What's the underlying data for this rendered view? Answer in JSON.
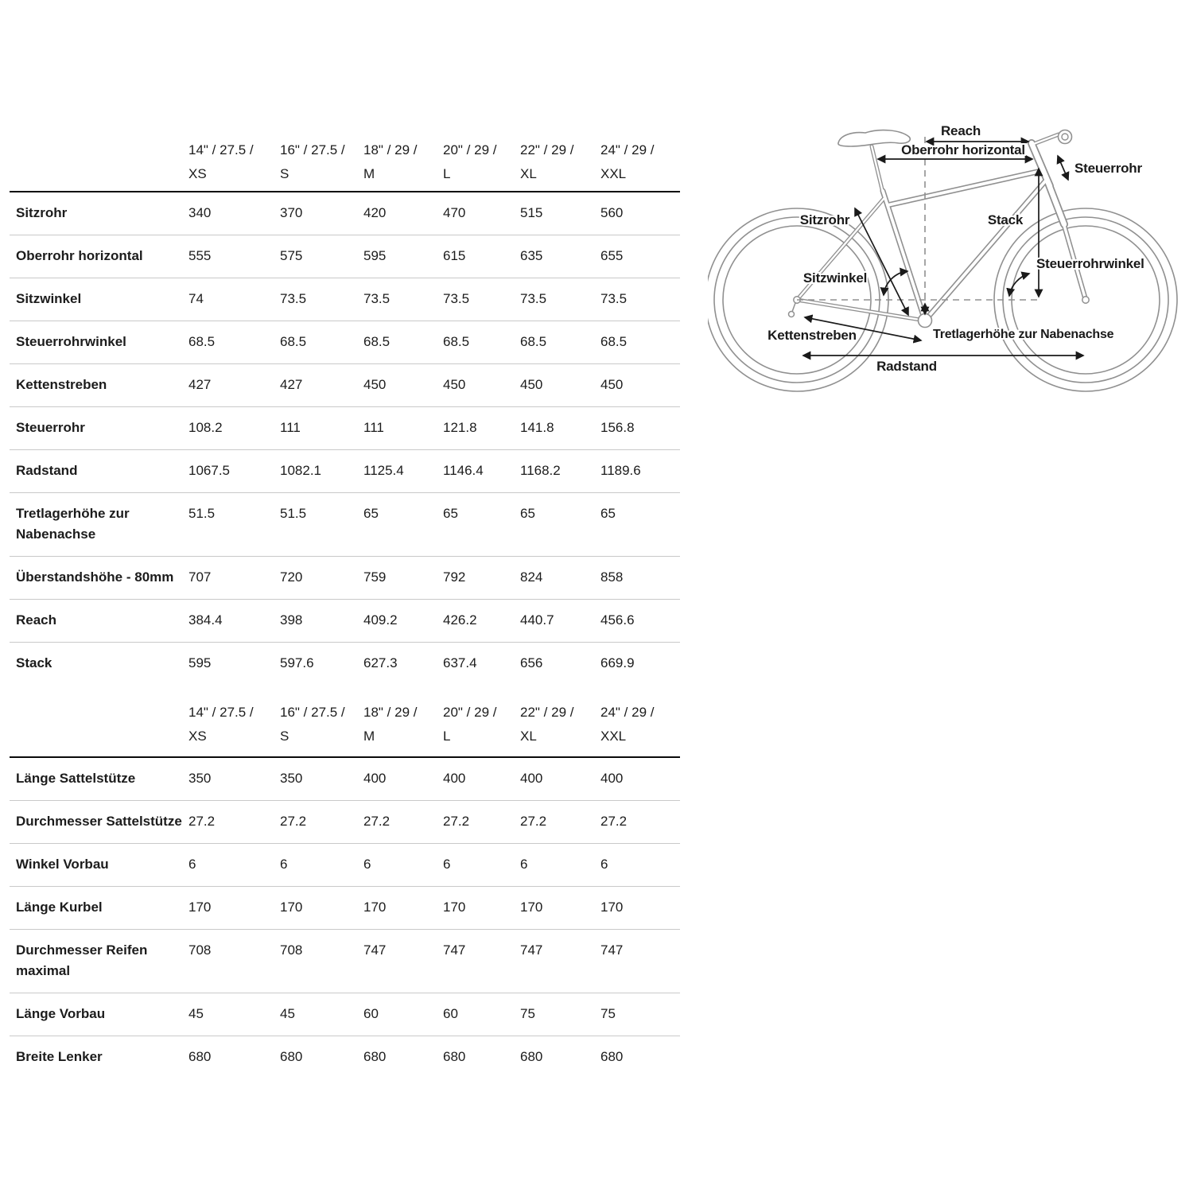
{
  "table": {
    "sizes": [
      {
        "l1": "14\" / 27.5 /",
        "l2": "XS"
      },
      {
        "l1": "16\" / 27.5 /",
        "l2": "S"
      },
      {
        "l1": "18\" / 29 /",
        "l2": "M"
      },
      {
        "l1": "20\" / 29 /",
        "l2": "L"
      },
      {
        "l1": "22\" / 29 /",
        "l2": "XL"
      },
      {
        "l1": "24\" / 29 /",
        "l2": "XXL"
      }
    ],
    "sections": [
      {
        "rows": [
          {
            "label": "Sitzrohr",
            "values": [
              "340",
              "370",
              "420",
              "470",
              "515",
              "560"
            ]
          },
          {
            "label": "Oberrohr horizontal",
            "values": [
              "555",
              "575",
              "595",
              "615",
              "635",
              "655"
            ]
          },
          {
            "label": "Sitzwinkel",
            "values": [
              "74",
              "73.5",
              "73.5",
              "73.5",
              "73.5",
              "73.5"
            ]
          },
          {
            "label": "Steuerrohrwinkel",
            "values": [
              "68.5",
              "68.5",
              "68.5",
              "68.5",
              "68.5",
              "68.5"
            ]
          },
          {
            "label": "Kettenstreben",
            "values": [
              "427",
              "427",
              "450",
              "450",
              "450",
              "450"
            ]
          },
          {
            "label": "Steuerrohr",
            "values": [
              "108.2",
              "111",
              "111",
              "121.8",
              "141.8",
              "156.8"
            ]
          },
          {
            "label": "Radstand",
            "values": [
              "1067.5",
              "1082.1",
              "1125.4",
              "1146.4",
              "1168.2",
              "1189.6"
            ]
          },
          {
            "label": "Tretlagerhöhe zur Nabenachse",
            "values": [
              "51.5",
              "51.5",
              "65",
              "65",
              "65",
              "65"
            ]
          },
          {
            "label": "Überstandshöhe - 80mm",
            "values": [
              "707",
              "720",
              "759",
              "792",
              "824",
              "858"
            ]
          },
          {
            "label": "Reach",
            "values": [
              "384.4",
              "398",
              "409.2",
              "426.2",
              "440.7",
              "456.6"
            ]
          },
          {
            "label": "Stack",
            "values": [
              "595",
              "597.6",
              "627.3",
              "637.4",
              "656",
              "669.9"
            ]
          }
        ]
      },
      {
        "rows": [
          {
            "label": "Länge Sattelstütze",
            "values": [
              "350",
              "350",
              "400",
              "400",
              "400",
              "400"
            ]
          },
          {
            "label": "Durchmesser Sattelstütze",
            "values": [
              "27.2",
              "27.2",
              "27.2",
              "27.2",
              "27.2",
              "27.2"
            ]
          },
          {
            "label": "Winkel Vorbau",
            "values": [
              "6",
              "6",
              "6",
              "6",
              "6",
              "6"
            ]
          },
          {
            "label": "Länge Kurbel",
            "values": [
              "170",
              "170",
              "170",
              "170",
              "170",
              "170"
            ]
          },
          {
            "label": "Durchmesser Reifen maximal",
            "values": [
              "708",
              "708",
              "747",
              "747",
              "747",
              "747"
            ]
          },
          {
            "label": "Länge Vorbau",
            "values": [
              "45",
              "45",
              "60",
              "60",
              "75",
              "75"
            ]
          },
          {
            "label": "Breite Lenker",
            "values": [
              "680",
              "680",
              "680",
              "680",
              "680",
              "680"
            ]
          }
        ]
      }
    ]
  },
  "diagram": {
    "labels": {
      "reach": "Reach",
      "oberrohr": "Oberrohr horizontal",
      "steuerrohr": "Steuerrohr",
      "steuerrohrwinkel": "Steuerrohrwinkel",
      "sitzrohr": "Sitzrohr",
      "sitzwinkel": "Sitzwinkel",
      "kettenstreben": "Kettenstreben",
      "tretlagerhoehe": "Tretlagerhöhe zur Nabenachse",
      "radstand": "Radstand",
      "stack": "Stack"
    }
  },
  "colors": {
    "text": "#1c1c1c",
    "separator": "#c9c9c9",
    "heavy_line": "#0a0a0a",
    "line_art": "#909090",
    "annotation": "#1a1a1a"
  }
}
